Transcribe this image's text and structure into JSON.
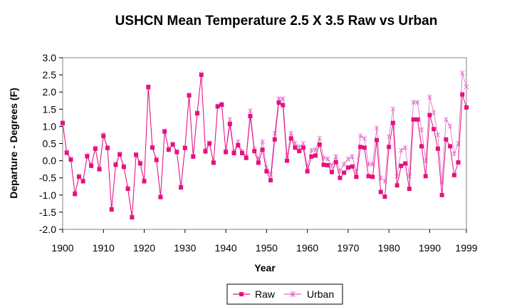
{
  "chart_data": {
    "type": "line",
    "title": "USHCN Mean Temperature 2.5 X 3.5 Raw vs Urban",
    "xlabel": "Year",
    "ylabel": "Departure - Degrees (F)",
    "xlim": [
      1900,
      1999
    ],
    "ylim": [
      -2.0,
      3.0
    ],
    "xticks": [
      1900,
      1910,
      1920,
      1930,
      1940,
      1950,
      1960,
      1970,
      1980,
      1990,
      1999
    ],
    "yticks": [
      -2.0,
      -1.5,
      -1.0,
      -0.5,
      0.0,
      0.5,
      1.0,
      1.5,
      2.0,
      2.5,
      3.0
    ],
    "grid": false,
    "legend_position": "bottom",
    "x": [
      1900,
      1901,
      1902,
      1903,
      1904,
      1905,
      1906,
      1907,
      1908,
      1909,
      1910,
      1911,
      1912,
      1913,
      1914,
      1915,
      1916,
      1917,
      1918,
      1919,
      1920,
      1921,
      1922,
      1923,
      1924,
      1925,
      1926,
      1927,
      1928,
      1929,
      1930,
      1931,
      1932,
      1933,
      1934,
      1935,
      1936,
      1937,
      1938,
      1939,
      1940,
      1941,
      1942,
      1943,
      1944,
      1945,
      1946,
      1947,
      1948,
      1949,
      1950,
      1951,
      1952,
      1953,
      1954,
      1955,
      1956,
      1957,
      1958,
      1959,
      1960,
      1961,
      1962,
      1963,
      1964,
      1965,
      1966,
      1967,
      1968,
      1969,
      1970,
      1971,
      1972,
      1973,
      1974,
      1975,
      1976,
      1977,
      1978,
      1979,
      1980,
      1981,
      1982,
      1983,
      1984,
      1985,
      1986,
      1987,
      1988,
      1989,
      1990,
      1991,
      1992,
      1993,
      1994,
      1995,
      1996,
      1997,
      1998,
      1999
    ],
    "series": [
      {
        "name": "Raw",
        "color": "#e5117f",
        "marker": "square",
        "values": [
          1.1,
          0.23,
          0.03,
          -0.97,
          -0.47,
          -0.6,
          0.13,
          -0.15,
          0.35,
          -0.25,
          0.72,
          0.37,
          -1.42,
          -0.12,
          0.18,
          -0.18,
          -0.82,
          -1.65,
          0.17,
          -0.08,
          -0.6,
          2.15,
          0.38,
          0.02,
          -1.06,
          0.85,
          0.32,
          0.47,
          0.25,
          -0.78,
          0.37,
          1.9,
          0.12,
          1.38,
          2.5,
          0.27,
          0.5,
          -0.06,
          1.58,
          1.63,
          0.25,
          1.07,
          0.22,
          0.45,
          0.22,
          0.08,
          1.3,
          0.28,
          -0.06,
          0.32,
          -0.31,
          -0.57,
          0.62,
          1.69,
          1.62,
          0.0,
          0.65,
          0.38,
          0.28,
          0.38,
          -0.31,
          0.12,
          0.15,
          0.47,
          -0.12,
          -0.13,
          -0.33,
          -0.04,
          -0.5,
          -0.35,
          -0.2,
          -0.17,
          -0.47,
          0.4,
          0.38,
          -0.45,
          -0.47,
          0.6,
          -0.91,
          -1.05,
          0.4,
          1.1,
          -0.72,
          -0.15,
          -0.08,
          -0.82,
          1.2,
          1.2,
          0.42,
          -0.45,
          1.33,
          0.92,
          0.35,
          -1.0,
          0.62,
          0.42,
          -0.42,
          -0.05,
          1.93,
          1.55
        ]
      },
      {
        "name": "Urban",
        "color": "#e066c6",
        "marker": "star",
        "values": [
          1.08,
          0.25,
          0.05,
          -0.95,
          -0.45,
          -0.58,
          0.15,
          -0.13,
          0.37,
          -0.23,
          0.76,
          0.38,
          -1.4,
          -0.1,
          0.2,
          -0.16,
          -0.8,
          -1.63,
          0.19,
          -0.06,
          -0.58,
          2.12,
          0.4,
          0.04,
          -1.04,
          0.87,
          0.34,
          0.49,
          0.27,
          -0.76,
          0.39,
          1.92,
          0.14,
          1.4,
          2.52,
          0.3,
          0.52,
          -0.04,
          1.6,
          1.65,
          0.28,
          1.2,
          0.25,
          0.55,
          0.27,
          0.13,
          1.45,
          0.35,
          0.05,
          0.55,
          -0.2,
          -0.4,
          0.8,
          1.8,
          1.8,
          0.15,
          0.8,
          0.5,
          0.4,
          0.5,
          -0.18,
          0.3,
          0.32,
          0.65,
          0.08,
          0.05,
          -0.15,
          0.12,
          -0.3,
          -0.1,
          0.05,
          0.12,
          -0.32,
          0.72,
          0.65,
          -0.1,
          -0.1,
          0.95,
          -0.5,
          -0.6,
          0.7,
          1.5,
          -0.45,
          0.3,
          0.38,
          -0.45,
          1.7,
          1.7,
          0.9,
          0.0,
          1.85,
          1.4,
          0.75,
          -0.62,
          1.2,
          1.0,
          0.2,
          0.5,
          2.55,
          2.15
        ]
      }
    ]
  }
}
